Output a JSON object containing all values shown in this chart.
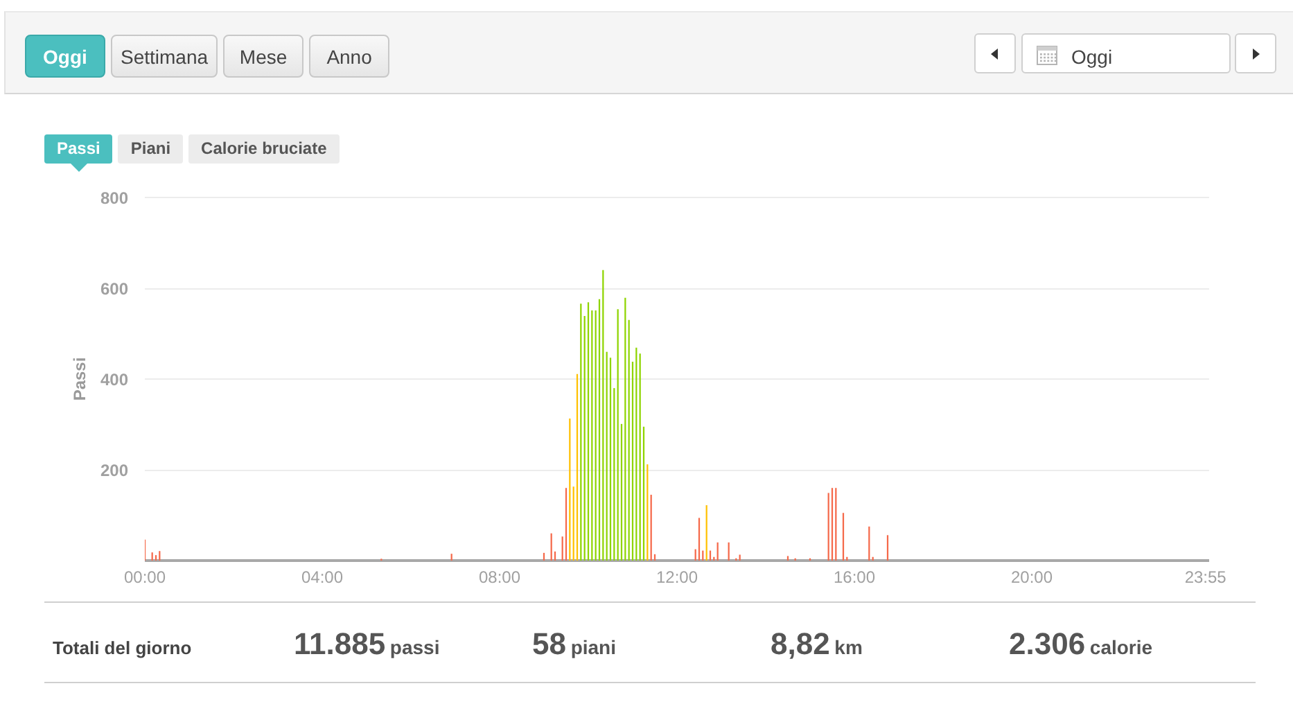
{
  "chart_data": [
    {
      "type": "other",
      "categories": [
        "Oggi",
        "Settimana",
        "Mese",
        "Anno"
      ],
      "annotations": [
        "Oggi"
      ]
    },
    {
      "type": "other",
      "categories": [
        "Passi",
        "Piani",
        "Calorie bruciate"
      ]
    },
    {
      "type": "bar",
      "ylabel": "Passi",
      "x": [
        0.0,
        0.1667,
        0.25,
        0.3333,
        5.3333,
        6.9167,
        9.0,
        9.1667,
        9.25,
        9.4167,
        9.5,
        9.5833,
        9.6667,
        9.75,
        9.8333,
        9.9167,
        10.0,
        10.0833,
        10.1667,
        10.25,
        10.3333,
        10.4167,
        10.5,
        10.5833,
        10.6667,
        10.75,
        10.8333,
        10.9167,
        11.0,
        11.0833,
        11.1667,
        11.25,
        11.3333,
        11.4167,
        11.5,
        12.4167,
        12.5,
        12.5833,
        12.6667,
        12.75,
        12.8333,
        12.9167,
        13.1667,
        13.3333,
        13.4167,
        14.5,
        14.6667,
        15.0,
        15.4167,
        15.5,
        15.5833,
        15.75,
        15.8333,
        16.3333,
        16.4167,
        16.75
      ],
      "values": [
        46,
        18,
        12,
        21,
        4,
        15,
        17,
        60,
        20,
        53,
        160,
        313,
        163,
        411,
        566,
        539,
        569,
        551,
        551,
        576,
        640,
        460,
        447,
        380,
        554,
        301,
        579,
        530,
        438,
        469,
        456,
        295,
        212,
        145,
        14,
        25,
        94,
        22,
        122,
        22,
        8,
        40,
        40,
        5,
        13,
        10,
        5,
        5,
        149,
        160,
        160,
        105,
        8,
        75,
        8,
        56
      ],
      "colors": [
        "#f5694a",
        "#f5694a",
        "#f5694a",
        "#f5694a",
        "#f5694a",
        "#f5694a",
        "#f5694a",
        "#f5694a",
        "#f5694a",
        "#f5694a",
        "#f5694a",
        "#ffc000",
        "#ffc000",
        "#ffc000",
        "#8ed400",
        "#8ed400",
        "#8ed400",
        "#8ed400",
        "#8ed400",
        "#8ed400",
        "#8ed400",
        "#8ed400",
        "#8ed400",
        "#8ed400",
        "#8ed400",
        "#8ed400",
        "#8ed400",
        "#8ed400",
        "#8ed400",
        "#8ed400",
        "#8ed400",
        "#8ed400",
        "#ffc000",
        "#f5694a",
        "#f5694a",
        "#f5694a",
        "#f5694a",
        "#f5694a",
        "#ffc000",
        "#f5694a",
        "#f5694a",
        "#f5694a",
        "#f5694a",
        "#f5694a",
        "#f5694a",
        "#f5694a",
        "#f5694a",
        "#f5694a",
        "#f5694a",
        "#f5694a",
        "#f5694a",
        "#f5694a",
        "#f5694a",
        "#f5694a",
        "#f5694a",
        "#f5694a"
      ],
      "xlim": [
        0,
        24
      ],
      "xticks": [
        {
          "value": 0,
          "label": "00:00"
        },
        {
          "value": 4,
          "label": "04:00"
        },
        {
          "value": 8,
          "label": "08:00"
        },
        {
          "value": 12,
          "label": "12:00"
        },
        {
          "value": 16,
          "label": "16:00"
        },
        {
          "value": 20,
          "label": "20:00"
        },
        {
          "value": 23.9167,
          "label": "23:55"
        }
      ],
      "ylim": [
        0,
        800
      ],
      "yticks": [
        200,
        400,
        600,
        800
      ],
      "grid": "y"
    },
    {
      "type": "other",
      "title": "Totali del giorno",
      "categories": [
        "passi",
        "piani",
        "km",
        "calorie"
      ],
      "value_labels": [
        "11.885",
        "58",
        "8,82",
        "2.306"
      ]
    }
  ]
}
